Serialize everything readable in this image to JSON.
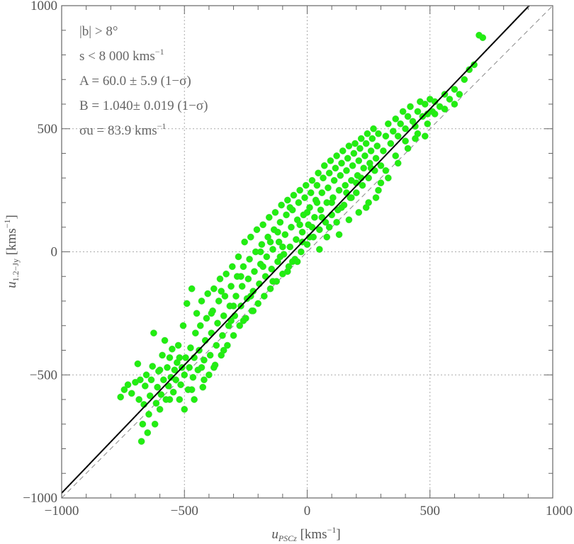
{
  "chart_data": {
    "type": "scatter",
    "xlabel": {
      "var": "u",
      "sub": "PSCz",
      "unit": " [kms",
      "sup": "−1",
      "close": "]"
    },
    "ylabel": {
      "var": "u",
      "sub": "1.2−Jy",
      "unit": " [kms",
      "sup": "−1",
      "close": "]"
    },
    "xlim": [
      -1000,
      1000
    ],
    "ylim": [
      -1000,
      1000
    ],
    "x_ticks": [
      -1000,
      -500,
      0,
      500,
      1000
    ],
    "y_ticks": [
      -1000,
      -500,
      0,
      500,
      1000
    ],
    "x_tick_labels": [
      "−1000",
      "−500",
      "0",
      "500",
      "1000"
    ],
    "y_tick_labels": [
      "−1000",
      "−500",
      "0",
      "500",
      "1000"
    ],
    "grid": true,
    "point_color": "#22ee11",
    "fit_line": {
      "intercept": 60.0,
      "slope": 1.04,
      "color": "#000000"
    },
    "identity_line": {
      "slope": 1,
      "intercept": 0,
      "style": "dashed",
      "color": "#888888"
    },
    "annotations": [
      {
        "text": "|b| > 8°"
      },
      {
        "text": "s < 8 000 kms",
        "sup": "−1"
      },
      {
        "text": "A = 60.0 ± 5.9 (1−σ)"
      },
      {
        "text": "B = 1.040± 0.019 (1−σ)"
      },
      {
        "text": "σu = 83.9 kms",
        "sup": "−1"
      }
    ],
    "points": [
      [
        -760,
        -590
      ],
      [
        -745,
        -560
      ],
      [
        -730,
        -540
      ],
      [
        -715,
        -575
      ],
      [
        -700,
        -530
      ],
      [
        -690,
        -455
      ],
      [
        -685,
        -600
      ],
      [
        -680,
        -520
      ],
      [
        -675,
        -770
      ],
      [
        -670,
        -700
      ],
      [
        -665,
        -620
      ],
      [
        -660,
        -545
      ],
      [
        -655,
        -500
      ],
      [
        -650,
        -735
      ],
      [
        -645,
        -660
      ],
      [
        -640,
        -585
      ],
      [
        -635,
        -520
      ],
      [
        -630,
        -465
      ],
      [
        -625,
        -330
      ],
      [
        -620,
        -700
      ],
      [
        -615,
        -615
      ],
      [
        -610,
        -550
      ],
      [
        -605,
        -485
      ],
      [
        -600,
        -640
      ],
      [
        -595,
        -580
      ],
      [
        -590,
        -420
      ],
      [
        -585,
        -520
      ],
      [
        -580,
        -360
      ],
      [
        -575,
        -600
      ],
      [
        -570,
        -470
      ],
      [
        -565,
        -545
      ],
      [
        -560,
        -430
      ],
      [
        -555,
        -510
      ],
      [
        -550,
        -395
      ],
      [
        -545,
        -570
      ],
      [
        -540,
        -480
      ],
      [
        -535,
        -520
      ],
      [
        -530,
        -450
      ],
      [
        -525,
        -380
      ],
      [
        -520,
        -600
      ],
      [
        -515,
        -540
      ],
      [
        -510,
        -470
      ],
      [
        -505,
        -300
      ],
      [
        -500,
        -500
      ],
      [
        -495,
        -430
      ],
      [
        -490,
        -210
      ],
      [
        -485,
        -560
      ],
      [
        -480,
        -470
      ],
      [
        -475,
        -390
      ],
      [
        -470,
        -150
      ],
      [
        -465,
        -510
      ],
      [
        -460,
        -430
      ],
      [
        -455,
        -330
      ],
      [
        -450,
        -250
      ],
      [
        -445,
        -480
      ],
      [
        -440,
        -400
      ],
      [
        -435,
        -300
      ],
      [
        -430,
        -200
      ],
      [
        -425,
        -550
      ],
      [
        -420,
        -440
      ],
      [
        -415,
        -360
      ],
      [
        -410,
        -270
      ],
      [
        -405,
        -170
      ],
      [
        -400,
        -500
      ],
      [
        -395,
        -420
      ],
      [
        -390,
        -330
      ],
      [
        -385,
        -240
      ],
      [
        -380,
        -150
      ],
      [
        -375,
        -460
      ],
      [
        -370,
        -380
      ],
      [
        -365,
        -290
      ],
      [
        -360,
        -200
      ],
      [
        -355,
        -110
      ],
      [
        -350,
        -420
      ],
      [
        -345,
        -340
      ],
      [
        -340,
        -260
      ],
      [
        -335,
        -180
      ],
      [
        -330,
        -90
      ],
      [
        -325,
        -380
      ],
      [
        -320,
        -300
      ],
      [
        -315,
        -220
      ],
      [
        -310,
        -140
      ],
      [
        -305,
        -60
      ],
      [
        -300,
        -340
      ],
      [
        -295,
        -260
      ],
      [
        -290,
        -180
      ],
      [
        -285,
        -100
      ],
      [
        -280,
        -20
      ],
      [
        -275,
        -300
      ],
      [
        -270,
        -220
      ],
      [
        -265,
        -140
      ],
      [
        -260,
        -60
      ],
      [
        -255,
        40
      ],
      [
        -250,
        -270
      ],
      [
        -245,
        -190
      ],
      [
        -240,
        -110
      ],
      [
        -235,
        -30
      ],
      [
        -230,
        60
      ],
      [
        -225,
        -240
      ],
      [
        -220,
        -160
      ],
      [
        -215,
        -80
      ],
      [
        -210,
        0
      ],
      [
        -205,
        90
      ],
      [
        -200,
        -210
      ],
      [
        -195,
        -130
      ],
      [
        -190,
        -50
      ],
      [
        -185,
        30
      ],
      [
        -180,
        110
      ],
      [
        -175,
        -180
      ],
      [
        -170,
        -100
      ],
      [
        -165,
        -20
      ],
      [
        -160,
        60
      ],
      [
        -155,
        140
      ],
      [
        -150,
        -150
      ],
      [
        -145,
        -70
      ],
      [
        -140,
        10
      ],
      [
        -135,
        90
      ],
      [
        -130,
        160
      ],
      [
        -125,
        -120
      ],
      [
        -120,
        -40
      ],
      [
        -115,
        40
      ],
      [
        -110,
        120
      ],
      [
        -105,
        190
      ],
      [
        -100,
        -90
      ],
      [
        -95,
        -10
      ],
      [
        -90,
        70
      ],
      [
        -85,
        150
      ],
      [
        -80,
        210
      ],
      [
        -75,
        -60
      ],
      [
        -70,
        20
      ],
      [
        -65,
        100
      ],
      [
        -60,
        170
      ],
      [
        -55,
        230
      ],
      [
        -50,
        -30
      ],
      [
        -45,
        50
      ],
      [
        -40,
        130
      ],
      [
        -35,
        200
      ],
      [
        -30,
        250
      ],
      [
        -25,
        0
      ],
      [
        -20,
        80
      ],
      [
        -15,
        150
      ],
      [
        -10,
        220
      ],
      [
        -5,
        270
      ],
      [
        0,
        30
      ],
      [
        5,
        110
      ],
      [
        10,
        180
      ],
      [
        15,
        240
      ],
      [
        20,
        290
      ],
      [
        25,
        60
      ],
      [
        30,
        140
      ],
      [
        35,
        210
      ],
      [
        40,
        270
      ],
      [
        45,
        320
      ],
      [
        50,
        90
      ],
      [
        55,
        170
      ],
      [
        60,
        240
      ],
      [
        65,
        300
      ],
      [
        70,
        350
      ],
      [
        75,
        120
      ],
      [
        80,
        200
      ],
      [
        85,
        260
      ],
      [
        90,
        320
      ],
      [
        95,
        370
      ],
      [
        100,
        150
      ],
      [
        105,
        220
      ],
      [
        110,
        290
      ],
      [
        115,
        340
      ],
      [
        120,
        390
      ],
      [
        125,
        170
      ],
      [
        130,
        250
      ],
      [
        135,
        310
      ],
      [
        140,
        360
      ],
      [
        145,
        410
      ],
      [
        150,
        190
      ],
      [
        155,
        270
      ],
      [
        160,
        330
      ],
      [
        165,
        380
      ],
      [
        170,
        430
      ],
      [
        175,
        220
      ],
      [
        180,
        290
      ],
      [
        185,
        350
      ],
      [
        190,
        400
      ],
      [
        195,
        440
      ],
      [
        200,
        240
      ],
      [
        205,
        310
      ],
      [
        210,
        370
      ],
      [
        215,
        420
      ],
      [
        220,
        460
      ],
      [
        225,
        270
      ],
      [
        230,
        340
      ],
      [
        235,
        390
      ],
      [
        240,
        440
      ],
      [
        245,
        480
      ],
      [
        250,
        300
      ],
      [
        255,
        360
      ],
      [
        260,
        410
      ],
      [
        265,
        460
      ],
      [
        270,
        500
      ],
      [
        275,
        330
      ],
      [
        280,
        380
      ],
      [
        285,
        430
      ],
      [
        290,
        480
      ],
      [
        300,
        350
      ],
      [
        310,
        410
      ],
      [
        320,
        470
      ],
      [
        330,
        520
      ],
      [
        340,
        440
      ],
      [
        350,
        490
      ],
      [
        360,
        540
      ],
      [
        370,
        470
      ],
      [
        380,
        520
      ],
      [
        390,
        570
      ],
      [
        400,
        500
      ],
      [
        410,
        550
      ],
      [
        420,
        590
      ],
      [
        430,
        530
      ],
      [
        440,
        460
      ],
      [
        450,
        570
      ],
      [
        460,
        610
      ],
      [
        470,
        550
      ],
      [
        480,
        600
      ],
      [
        490,
        520
      ],
      [
        500,
        620
      ],
      [
        510,
        570
      ],
      [
        520,
        610
      ],
      [
        540,
        590
      ],
      [
        560,
        640
      ],
      [
        580,
        620
      ],
      [
        600,
        660
      ],
      [
        620,
        640
      ],
      [
        640,
        700
      ],
      [
        660,
        740
      ],
      [
        680,
        760
      ],
      [
        700,
        880
      ],
      [
        715,
        870
      ],
      [
        -600,
        -480
      ],
      [
        -560,
        -600
      ],
      [
        -520,
        -430
      ],
      [
        -470,
        -560
      ],
      [
        -430,
        -470
      ],
      [
        -390,
        -250
      ],
      [
        -350,
        -160
      ],
      [
        -310,
        -280
      ],
      [
        -270,
        -100
      ],
      [
        -230,
        -180
      ],
      [
        -190,
        0
      ],
      [
        -150,
        40
      ],
      [
        -110,
        -20
      ],
      [
        -70,
        180
      ],
      [
        -30,
        110
      ],
      [
        10,
        60
      ],
      [
        50,
        10
      ],
      [
        90,
        100
      ],
      [
        130,
        70
      ],
      [
        170,
        130
      ],
      [
        210,
        160
      ],
      [
        250,
        200
      ],
      [
        290,
        250
      ],
      [
        330,
        300
      ],
      [
        370,
        360
      ],
      [
        410,
        420
      ],
      [
        450,
        480
      ],
      [
        490,
        560
      ],
      [
        -120,
        80
      ],
      [
        -80,
        -80
      ],
      [
        -40,
        -40
      ],
      [
        0,
        160
      ],
      [
        40,
        200
      ],
      [
        80,
        60
      ],
      [
        120,
        120
      ],
      [
        160,
        240
      ],
      [
        200,
        280
      ],
      [
        240,
        180
      ],
      [
        280,
        220
      ],
      [
        320,
        330
      ],
      [
        360,
        390
      ],
      [
        400,
        450
      ],
      [
        440,
        510
      ],
      [
        480,
        470
      ],
      [
        520,
        560
      ],
      [
        560,
        580
      ],
      [
        600,
        600
      ],
      [
        -500,
        -640
      ],
      [
        -460,
        -600
      ],
      [
        -420,
        -520
      ],
      [
        -380,
        -470
      ],
      [
        -340,
        -400
      ],
      [
        -300,
        -220
      ],
      [
        -260,
        -280
      ],
      [
        -220,
        -240
      ],
      [
        -180,
        -60
      ],
      [
        -140,
        -120
      ],
      [
        -100,
        20
      ],
      [
        -60,
        -40
      ],
      [
        -20,
        40
      ],
      [
        20,
        100
      ],
      [
        60,
        140
      ],
      [
        100,
        200
      ],
      [
        140,
        180
      ],
      [
        180,
        220
      ],
      [
        220,
        300
      ],
      [
        260,
        340
      ],
      [
        300,
        280
      ]
    ]
  }
}
